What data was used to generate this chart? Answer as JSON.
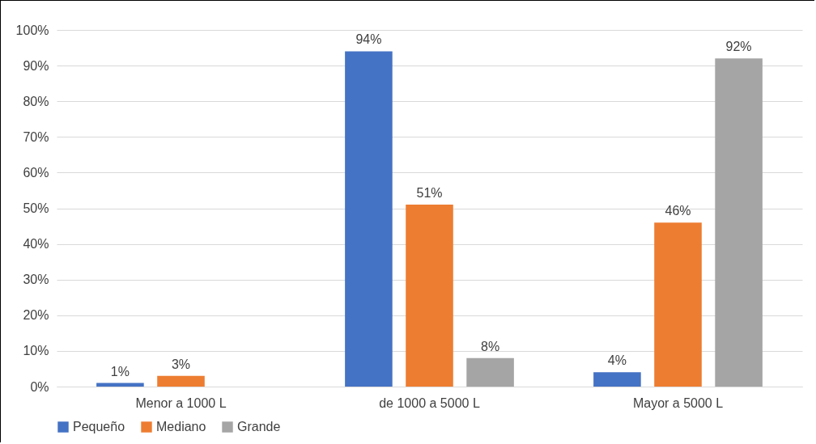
{
  "chart_data": {
    "type": "bar",
    "categories": [
      "Menor a 1000 L",
      "de 1000 a 5000 L",
      "Mayor a 5000 L"
    ],
    "series": [
      {
        "name": "Pequeño",
        "color": "#4472c4",
        "values": [
          1,
          94,
          4
        ],
        "value_labels": [
          "1%",
          "94%",
          "4%"
        ]
      },
      {
        "name": "Mediano",
        "color": "#ed7d31",
        "values": [
          3,
          51,
          46
        ],
        "value_labels": [
          "3%",
          "51%",
          "46%"
        ]
      },
      {
        "name": "Grande",
        "color": "#a5a5a5",
        "values": [
          null,
          8,
          92
        ],
        "value_labels": [
          null,
          "8%",
          "92%"
        ]
      }
    ],
    "ylim": [
      0,
      100
    ],
    "yticks": [
      {
        "value": 0,
        "label": "0%"
      },
      {
        "value": 10,
        "label": "10%"
      },
      {
        "value": 20,
        "label": "20%"
      },
      {
        "value": 30,
        "label": "30%"
      },
      {
        "value": 40,
        "label": "40%"
      },
      {
        "value": 50,
        "label": "50%"
      },
      {
        "value": 60,
        "label": "60%"
      },
      {
        "value": 70,
        "label": "70%"
      },
      {
        "value": 80,
        "label": "80%"
      },
      {
        "value": 90,
        "label": "90%"
      },
      {
        "value": 100,
        "label": "100%"
      }
    ],
    "grid": "y",
    "legend": "bottom"
  }
}
